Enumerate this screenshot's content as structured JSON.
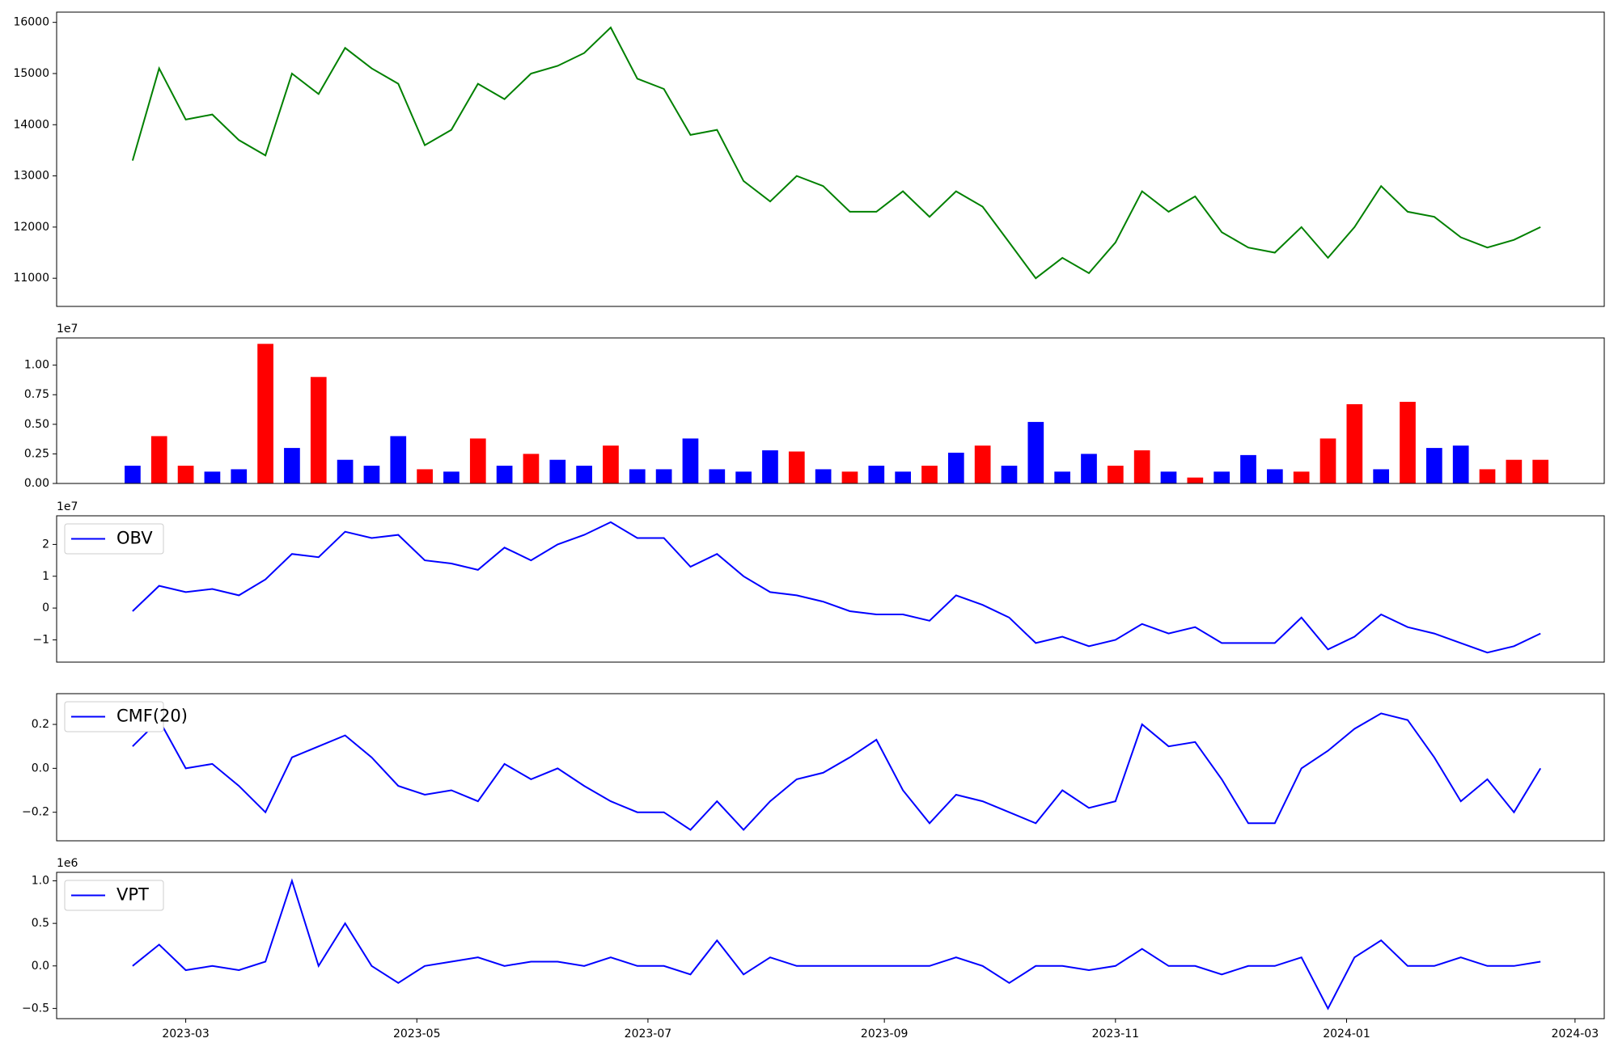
{
  "chart_data": [
    {
      "type": "line",
      "color": "green",
      "categories": [
        null,
        null,
        null,
        null,
        null,
        null,
        null,
        null,
        null,
        null,
        null,
        null,
        null,
        null,
        null,
        null,
        null,
        null,
        null,
        null,
        null,
        null,
        null,
        null,
        null,
        null,
        null,
        null,
        null,
        null,
        null,
        null,
        null,
        null,
        null,
        null,
        null,
        null,
        null,
        null,
        null,
        null,
        null,
        null,
        null,
        null,
        null,
        null,
        null,
        null,
        null,
        null,
        null,
        null
      ],
      "values": [
        13300,
        15100,
        14100,
        14200,
        13700,
        13400,
        15000,
        14600,
        15500,
        15100,
        14800,
        13600,
        13900,
        14800,
        14500,
        15000,
        15150,
        15400,
        15900,
        14900,
        14700,
        13800,
        13900,
        12900,
        12500,
        13000,
        12800,
        12300,
        12300,
        12700,
        12200,
        12700,
        12400,
        11700,
        11000,
        11400,
        11100,
        11700,
        12700,
        12300,
        12600,
        11900,
        11600,
        11500,
        12000,
        11400,
        12000,
        12800,
        12300,
        12200,
        11800,
        11600,
        11750,
        12000
      ],
      "xlim": [
        -2.86,
        55.4
      ],
      "ylim": [
        10450,
        16200
      ],
      "yticks": [
        11000,
        12000,
        13000,
        14000,
        15000,
        16000
      ]
    },
    {
      "type": "bar",
      "offset_label": "1e7",
      "categories": [
        null,
        null,
        null,
        null,
        null,
        null,
        null,
        null,
        null,
        null,
        null,
        null,
        null,
        null,
        null,
        null,
        null,
        null,
        null,
        null,
        null,
        null,
        null,
        null,
        null,
        null,
        null,
        null,
        null,
        null,
        null,
        null,
        null,
        null,
        null,
        null,
        null,
        null,
        null,
        null,
        null,
        null,
        null,
        null,
        null,
        null,
        null,
        null,
        null,
        null,
        null,
        null,
        null,
        null
      ],
      "values": [
        0.15,
        0.4,
        0.15,
        0.1,
        0.12,
        1.18,
        0.3,
        0.9,
        0.2,
        0.15,
        0.4,
        0.12,
        0.1,
        0.38,
        0.15,
        0.25,
        0.2,
        0.15,
        0.32,
        0.12,
        0.12,
        0.38,
        0.12,
        0.1,
        0.28,
        0.27,
        0.12,
        0.1,
        0.15,
        0.1,
        0.15,
        0.26,
        0.32,
        0.15,
        0.52,
        0.1,
        0.25,
        0.15,
        0.28,
        0.1,
        0.05,
        0.1,
        0.24,
        0.12,
        0.1,
        0.38,
        0.67,
        0.12,
        0.69,
        0.3,
        0.32,
        0.12,
        0.2,
        0.2
      ],
      "colors": [
        "blue",
        "red",
        "red",
        "blue",
        "blue",
        "red",
        "blue",
        "red",
        "blue",
        "blue",
        "blue",
        "red",
        "blue",
        "red",
        "blue",
        "red",
        "blue",
        "blue",
        "red",
        "blue",
        "blue",
        "blue",
        "blue",
        "blue",
        "blue",
        "red",
        "blue",
        "red",
        "blue",
        "blue",
        "red",
        "blue",
        "red",
        "blue",
        "blue",
        "blue",
        "blue",
        "red",
        "red",
        "blue",
        "red",
        "blue",
        "blue",
        "blue",
        "red",
        "red",
        "red",
        "blue",
        "red",
        "blue",
        "blue",
        "red",
        "red",
        "red"
      ],
      "xlim": [
        -2.86,
        55.4
      ],
      "ylim": [
        0,
        1.23
      ],
      "yticks": [
        {
          "value": 0,
          "label": "0.00"
        },
        0.25,
        {
          "value": 0.5,
          "label": "0.50"
        },
        0.75,
        {
          "value": 1,
          "label": "1.00"
        }
      ]
    },
    {
      "type": "line",
      "offset_label": "1e7",
      "legend": "upper left",
      "categories": [
        null,
        null,
        null,
        null,
        null,
        null,
        null,
        null,
        null,
        null,
        null,
        null,
        null,
        null,
        null,
        null,
        null,
        null,
        null,
        null,
        null,
        null,
        null,
        null,
        null,
        null,
        null,
        null,
        null,
        null,
        null,
        null,
        null,
        null,
        null,
        null,
        null,
        null,
        null,
        null,
        null,
        null,
        null,
        null,
        null,
        null,
        null,
        null,
        null,
        null,
        null,
        null,
        null,
        null
      ],
      "series": [
        {
          "name": "OBV",
          "color": "blue",
          "values": [
            -0.1,
            0.7,
            0.5,
            0.6,
            0.4,
            0.9,
            1.7,
            1.6,
            2.4,
            2.2,
            2.3,
            1.5,
            1.4,
            1.2,
            1.9,
            1.5,
            2.0,
            2.3,
            2.7,
            2.2,
            2.2,
            1.3,
            1.7,
            1.0,
            0.5,
            0.4,
            0.2,
            -0.1,
            -0.2,
            -0.2,
            -0.4,
            0.4,
            0.1,
            -0.3,
            -1.1,
            -0.9,
            -1.2,
            -1.0,
            -0.5,
            -0.8,
            -0.6,
            -1.1,
            -1.1,
            -1.1,
            -0.3,
            -1.3,
            -0.9,
            -0.2,
            -0.6,
            -0.8,
            -1.1,
            -1.4,
            -1.2,
            -0.8
          ]
        }
      ],
      "xlim": [
        -2.86,
        55.4
      ],
      "ylim": [
        -1.7,
        2.9
      ],
      "yticks": [
        {
          "value": -1,
          "label": "−1"
        },
        0,
        1,
        2
      ]
    },
    {
      "type": "line",
      "legend": "upper left",
      "categories": [
        null,
        null,
        null,
        null,
        null,
        null,
        null,
        null,
        null,
        null,
        null,
        null,
        null,
        null,
        null,
        null,
        null,
        null,
        null,
        null,
        null,
        null,
        null,
        null,
        null,
        null,
        null,
        null,
        null,
        null,
        null,
        null,
        null,
        null,
        null,
        null,
        null,
        null,
        null,
        null,
        null,
        null,
        null,
        null,
        null,
        null,
        null,
        null,
        null,
        null,
        null,
        null,
        null,
        null
      ],
      "series": [
        {
          "name": "CMF(20)",
          "color": "blue",
          "values": [
            0.1,
            0.22,
            0.0,
            0.02,
            -0.08,
            -0.2,
            0.05,
            0.1,
            0.15,
            0.05,
            -0.08,
            -0.12,
            -0.1,
            -0.15,
            0.02,
            -0.05,
            0.0,
            -0.08,
            -0.15,
            -0.2,
            -0.2,
            -0.28,
            -0.15,
            -0.28,
            -0.15,
            -0.05,
            -0.02,
            0.05,
            0.13,
            -0.1,
            -0.25,
            -0.12,
            -0.15,
            -0.2,
            -0.25,
            -0.1,
            -0.18,
            -0.15,
            0.2,
            0.1,
            0.12,
            -0.05,
            -0.25,
            -0.25,
            0.0,
            0.08,
            0.18,
            0.25,
            0.22,
            0.05,
            -0.15,
            -0.05,
            -0.2,
            0.0
          ]
        }
      ],
      "xlim": [
        -2.86,
        55.4
      ],
      "ylim": [
        -0.33,
        0.34
      ],
      "yticks": [
        {
          "value": -0.2,
          "label": "−0.2"
        },
        {
          "value": 0,
          "label": "0.0"
        },
        0.2
      ]
    },
    {
      "type": "line",
      "offset_label": "1e6",
      "legend": "upper left",
      "categories": [
        null,
        null,
        null,
        null,
        null,
        null,
        null,
        null,
        null,
        null,
        null,
        null,
        null,
        null,
        null,
        null,
        null,
        null,
        null,
        null,
        null,
        null,
        null,
        null,
        null,
        null,
        null,
        null,
        null,
        null,
        null,
        null,
        null,
        null,
        null,
        null,
        null,
        null,
        null,
        null,
        null,
        null,
        null,
        null,
        null,
        null,
        null,
        null,
        null,
        null,
        null,
        null,
        null,
        null
      ],
      "series": [
        {
          "name": "VPT",
          "color": "blue",
          "values": [
            0.0,
            0.25,
            -0.05,
            0.0,
            -0.05,
            0.05,
            1.0,
            0.0,
            0.5,
            0.0,
            -0.2,
            0.0,
            0.05,
            0.1,
            0.0,
            0.05,
            0.05,
            0.0,
            0.1,
            0.0,
            0.0,
            -0.1,
            0.3,
            -0.1,
            0.1,
            0.0,
            0.0,
            0.0,
            0.0,
            0.0,
            0.0,
            0.1,
            0.0,
            -0.2,
            0.0,
            0.0,
            -0.05,
            0.0,
            0.2,
            0.0,
            0.0,
            -0.1,
            0.0,
            0.0,
            0.1,
            -0.5,
            0.1,
            0.3,
            0.0,
            0.0,
            0.1,
            0.0,
            0.0,
            0.05
          ]
        }
      ],
      "xlim": [
        -2.86,
        55.4
      ],
      "ylim": [
        -0.62,
        1.1
      ],
      "yticks": [
        {
          "value": -0.5,
          "label": "−0.5"
        },
        {
          "value": 0,
          "label": "0.0"
        },
        0.5,
        {
          "value": 1,
          "label": "1.0"
        }
      ],
      "xticks": [
        {
          "value": 2,
          "label": "2023-03"
        },
        {
          "value": 10.7,
          "label": "2023-05"
        },
        {
          "value": 19.4,
          "label": "2023-07"
        },
        {
          "value": 28.3,
          "label": "2023-09"
        },
        {
          "value": 37,
          "label": "2023-11"
        },
        {
          "value": 45.7,
          "label": "2024-01"
        },
        {
          "value": 54.3,
          "label": "2024-03"
        }
      ]
    }
  ]
}
